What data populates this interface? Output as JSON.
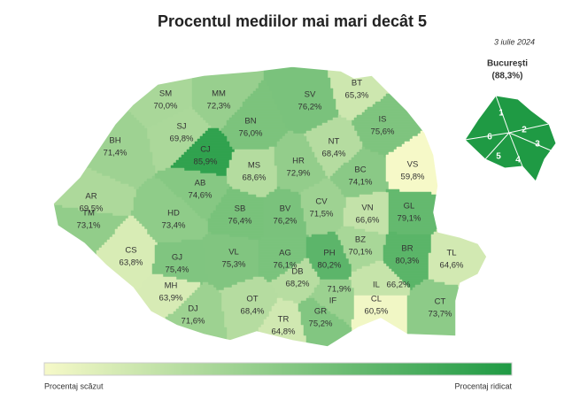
{
  "header": {
    "title": "Procentul mediilor mai mari decât 5",
    "date": "3 iulie 2024"
  },
  "map": {
    "regions": [
      {
        "code": "SM",
        "value": 70.0,
        "value_label": "70,0%"
      },
      {
        "code": "MM",
        "value": 72.3,
        "value_label": "72,3%"
      },
      {
        "code": "BT",
        "value": 65.3,
        "value_label": "65,3%"
      },
      {
        "code": "SV",
        "value": 76.2,
        "value_label": "76,2%"
      },
      {
        "code": "SJ",
        "value": 69.8,
        "value_label": "69,8%"
      },
      {
        "code": "BN",
        "value": 76.0,
        "value_label": "76,0%"
      },
      {
        "code": "IS",
        "value": 75.6,
        "value_label": "75,6%"
      },
      {
        "code": "BH",
        "value": 71.4,
        "value_label": "71,4%"
      },
      {
        "code": "CJ",
        "value": 85.9,
        "value_label": "85,9%"
      },
      {
        "code": "NT",
        "value": 68.4,
        "value_label": "68,4%"
      },
      {
        "code": "MS",
        "value": 68.6,
        "value_label": "68,6%"
      },
      {
        "code": "HR",
        "value": 72.9,
        "value_label": "72,9%"
      },
      {
        "code": "BC",
        "value": 74.1,
        "value_label": "74,1%"
      },
      {
        "code": "VS",
        "value": 59.8,
        "value_label": "59,8%"
      },
      {
        "code": "AR",
        "value": 69.5,
        "value_label": "69,5%"
      },
      {
        "code": "AB",
        "value": 74.6,
        "value_label": "74,6%"
      },
      {
        "code": "TM",
        "value": 73.1,
        "value_label": "73,1%"
      },
      {
        "code": "HD",
        "value": 73.4,
        "value_label": "73,4%"
      },
      {
        "code": "SB",
        "value": 76.4,
        "value_label": "76,4%"
      },
      {
        "code": "BV",
        "value": 76.2,
        "value_label": "76,2%"
      },
      {
        "code": "CV",
        "value": 71.5,
        "value_label": "71,5%"
      },
      {
        "code": "VN",
        "value": 66.6,
        "value_label": "66,6%"
      },
      {
        "code": "GL",
        "value": 79.1,
        "value_label": "79,1%"
      },
      {
        "code": "CS",
        "value": 63.8,
        "value_label": "63,8%"
      },
      {
        "code": "GJ",
        "value": 75.4,
        "value_label": "75,4%"
      },
      {
        "code": "VL",
        "value": 75.3,
        "value_label": "75,3%"
      },
      {
        "code": "AG",
        "value": 76.1,
        "value_label": "76,1%"
      },
      {
        "code": "PH",
        "value": 80.2,
        "value_label": "80,2%"
      },
      {
        "code": "BZ",
        "value": 70.1,
        "value_label": "70,1%"
      },
      {
        "code": "BR",
        "value": 80.3,
        "value_label": "80,3%"
      },
      {
        "code": "TL",
        "value": 64.6,
        "value_label": "64,6%"
      },
      {
        "code": "DB",
        "value": 68.2,
        "value_label": "68,2%"
      },
      {
        "code": "MH",
        "value": 63.9,
        "value_label": "63,9%"
      },
      {
        "code": "OT",
        "value": 68.4,
        "value_label": "68,4%"
      },
      {
        "code": "DJ",
        "value": 71.6,
        "value_label": "71,6%"
      },
      {
        "code": "IF",
        "value": 71.9,
        "value_label": "71,9%"
      },
      {
        "code": "IL",
        "value": 66.2,
        "value_label": "66,2%"
      },
      {
        "code": "CL",
        "value": 60.5,
        "value_label": "60,5%"
      },
      {
        "code": "CT",
        "value": 73.7,
        "value_label": "73,7%"
      },
      {
        "code": "TR",
        "value": 64.8,
        "value_label": "64,8%"
      },
      {
        "code": "GR",
        "value": 75.2,
        "value_label": "75,2%"
      }
    ],
    "inset": {
      "title": "București",
      "value": 88.3,
      "value_label": "(88,3%)",
      "sectors": [
        "1",
        "2",
        "3",
        "4",
        "5",
        "6"
      ]
    }
  },
  "legend": {
    "low": "Procentaj scăzut",
    "high": "Procentaj ridicat"
  }
}
